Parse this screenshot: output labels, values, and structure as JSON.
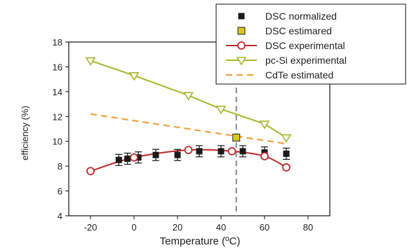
{
  "chart_data": {
    "type": "line",
    "xlabel": "Temperature (ºC)",
    "ylabel": "efficiency (%)",
    "xlim": [
      -30,
      90
    ],
    "ylim": [
      4,
      18
    ],
    "xticks": [
      "-20",
      "0",
      "20",
      "40",
      "60",
      "80"
    ],
    "yticks": [
      "4",
      "6",
      "8",
      "10",
      "12",
      "14",
      "16",
      "18"
    ],
    "reference_line_x": 47,
    "grid": false,
    "legend_position": "top-right",
    "series": [
      {
        "name": "DSC normalized",
        "style": "square-errorbar",
        "color": "#1a1a1a",
        "x": [
          -7,
          -3,
          2,
          10,
          20,
          30,
          40,
          50,
          60,
          70
        ],
        "y": [
          8.5,
          8.6,
          8.7,
          8.9,
          8.9,
          9.2,
          9.2,
          9.2,
          9.1,
          9.0
        ],
        "err": [
          0.45,
          0.45,
          0.45,
          0.45,
          0.45,
          0.45,
          0.45,
          0.45,
          0.45,
          0.45
        ]
      },
      {
        "name": "DSC estimared",
        "style": "square",
        "color": "#d8c81a",
        "x": [
          47
        ],
        "y": [
          10.3
        ]
      },
      {
        "name": "DSC experimental",
        "style": "circle-line",
        "color": "#c0282a",
        "x": [
          -20,
          0,
          25,
          45,
          60,
          70
        ],
        "y": [
          7.6,
          8.7,
          9.3,
          9.2,
          8.8,
          7.9
        ]
      },
      {
        "name": "pc-Si experimental",
        "style": "triangle-line",
        "color": "#a6b82c",
        "x": [
          -20,
          0,
          25,
          40,
          60,
          70
        ],
        "y": [
          16.5,
          15.3,
          13.7,
          12.6,
          11.4,
          10.3
        ]
      },
      {
        "name": "CdTe estimated",
        "style": "dashed-line",
        "color": "#f0a040",
        "x": [
          -20,
          70
        ],
        "y": [
          12.2,
          9.8
        ]
      }
    ]
  }
}
